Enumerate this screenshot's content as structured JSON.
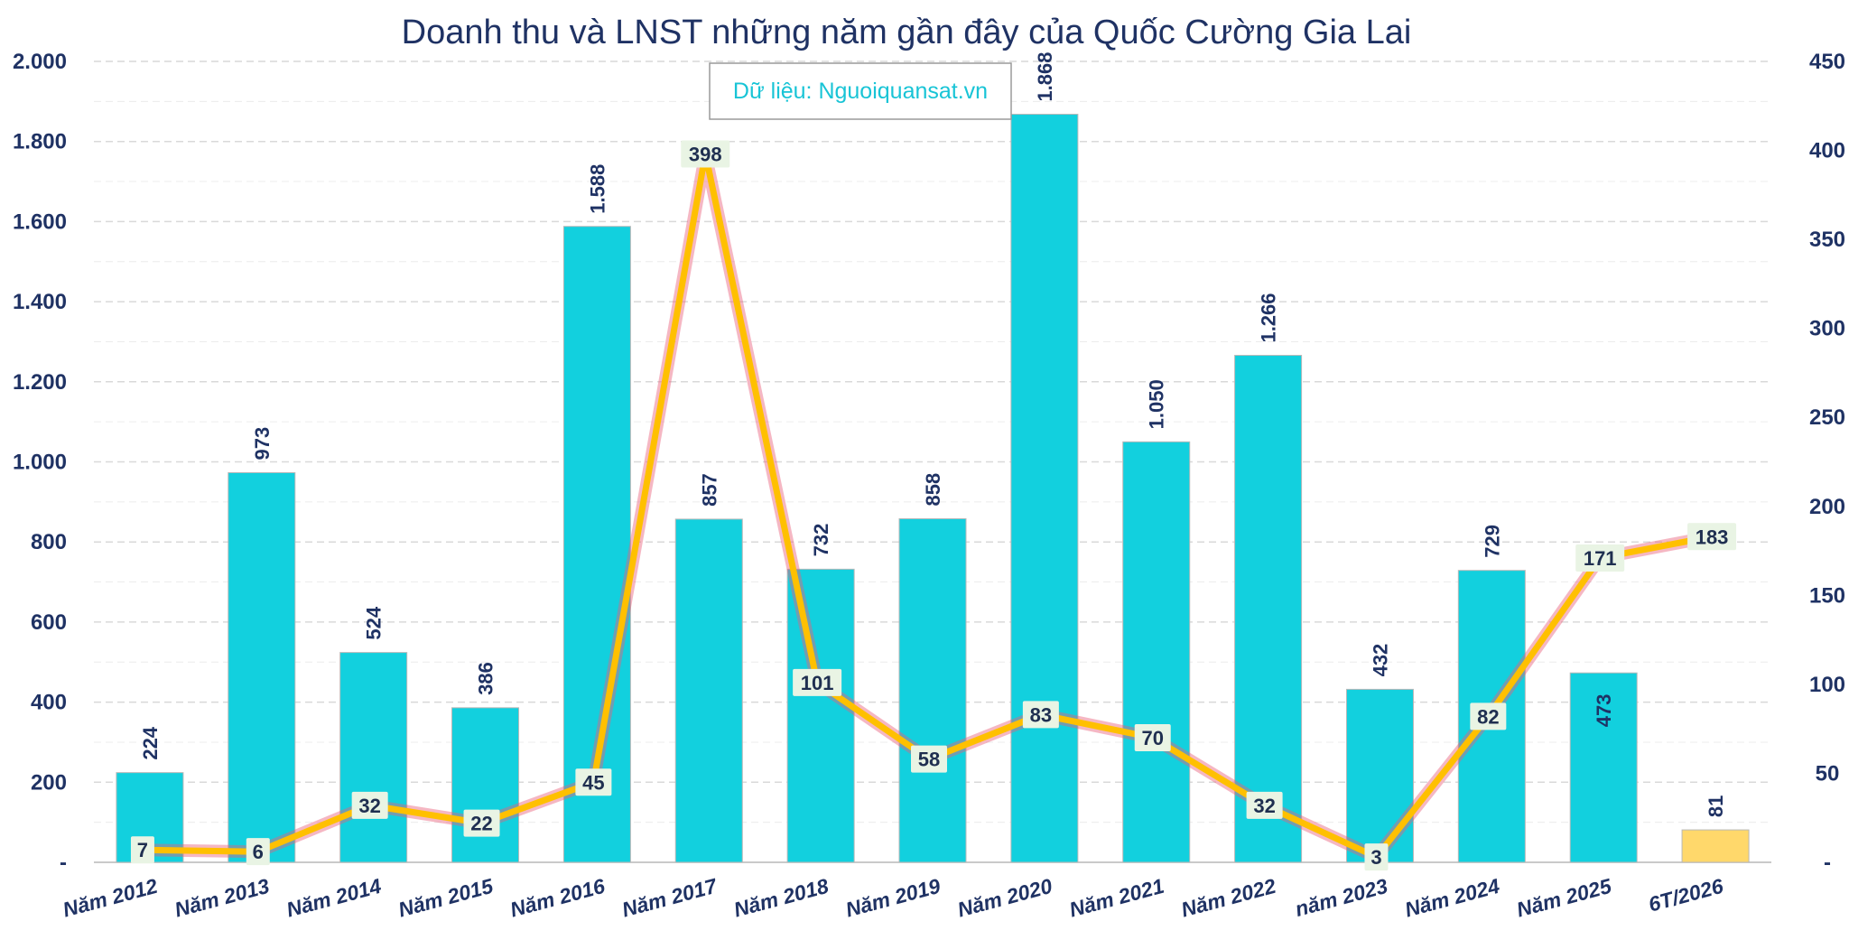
{
  "chart_data": {
    "type": "bar",
    "title": "Doanh thu và LNST những năm gần đây của Quốc Cường Gia Lai",
    "source_note": "Dữ liệu: Nguoiquansat.vn",
    "categories": [
      "Năm 2012",
      "Năm 2013",
      "Năm 2014",
      "Năm 2015",
      "Năm 2016",
      "Năm 2017",
      "Năm 2018",
      "Năm 2019",
      "Năm 2020",
      "Năm 2021",
      "Năm 2022",
      "năm 2023",
      "Năm 2024",
      "Năm 2025",
      "6T/2026"
    ],
    "series": [
      {
        "type": "bar",
        "axis": "left",
        "values": [
          224,
          973,
          524,
          386,
          1588,
          857,
          732,
          858,
          1868,
          1050,
          1266,
          432,
          729,
          473,
          81
        ],
        "labels": [
          "224",
          "973",
          "524",
          "386",
          "1.588",
          "857",
          "732",
          "858",
          "1.868",
          "1.050",
          "1.266",
          "432",
          "729",
          "473",
          "81"
        ],
        "color": "#12d0de",
        "highlight_last_color": "#ffd86b"
      },
      {
        "type": "line",
        "axis": "right",
        "values": [
          7,
          6,
          32,
          22,
          45,
          398,
          101,
          58,
          83,
          70,
          32,
          3,
          82,
          171,
          183
        ],
        "labels": [
          "7",
          "6",
          "32",
          "22",
          "45",
          "398",
          "101",
          "58",
          "83",
          "70",
          "32",
          "3",
          "82",
          "171",
          "183"
        ],
        "color": "#ffc000",
        "glow_color": "#e8607a"
      }
    ],
    "left_axis": {
      "ylim": [
        0,
        2000
      ],
      "ticks": [
        0,
        200,
        400,
        600,
        800,
        1000,
        1200,
        1400,
        1600,
        1800,
        2000
      ],
      "tick_labels": [
        "-",
        "200",
        "400",
        "600",
        "800",
        "1.000",
        "1.200",
        "1.400",
        "1.600",
        "1.800",
        "2.000"
      ]
    },
    "right_axis": {
      "ylim": [
        0,
        450
      ],
      "ticks": [
        0,
        50,
        100,
        150,
        200,
        250,
        300,
        350,
        400,
        450
      ],
      "tick_labels": [
        "-",
        "50",
        "100",
        "150",
        "200",
        "250",
        "300",
        "350",
        "400",
        "450"
      ]
    },
    "grid": true
  }
}
